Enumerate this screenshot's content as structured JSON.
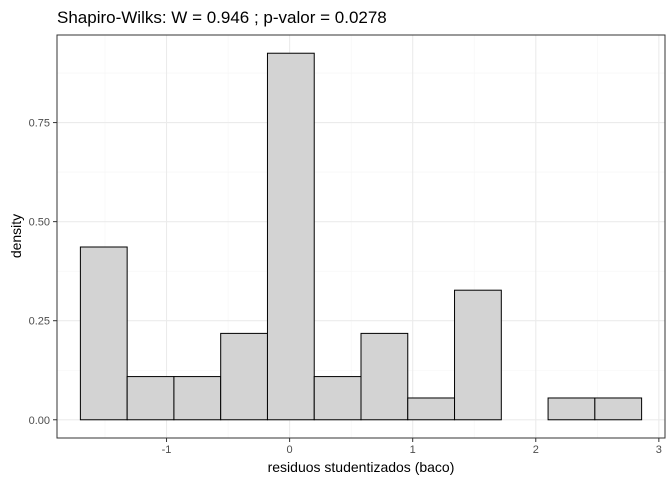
{
  "chart_data": {
    "type": "bar",
    "title": "Shapiro-Wilks: W =  0.946 ; p-valor =  0.0278",
    "xlabel": "residuos studentizados (baco)",
    "ylabel": "density",
    "bins": [
      {
        "x0": -1.7,
        "x1": -1.32,
        "density": 0.436
      },
      {
        "x0": -1.32,
        "x1": -0.94,
        "density": 0.109
      },
      {
        "x0": -0.94,
        "x1": -0.56,
        "density": 0.109
      },
      {
        "x0": -0.56,
        "x1": -0.18,
        "density": 0.218
      },
      {
        "x0": -0.18,
        "x1": 0.2,
        "density": 0.925
      },
      {
        "x0": 0.2,
        "x1": 0.58,
        "density": 0.109
      },
      {
        "x0": 0.58,
        "x1": 0.96,
        "density": 0.218
      },
      {
        "x0": 0.96,
        "x1": 1.34,
        "density": 0.055
      },
      {
        "x0": 1.34,
        "x1": 1.72,
        "density": 0.327
      },
      {
        "x0": 1.72,
        "x1": 2.1,
        "density": 0.0
      },
      {
        "x0": 2.1,
        "x1": 2.48,
        "density": 0.055
      },
      {
        "x0": 2.48,
        "x1": 2.86,
        "density": 0.055
      }
    ],
    "xlim": [
      -1.89,
      3.05
    ],
    "ylim": [
      -0.046,
      0.971
    ],
    "xticks": [
      -1,
      0,
      1,
      2,
      3
    ],
    "xtick_labels": [
      "-1",
      "0",
      "1",
      "2",
      "3"
    ],
    "yticks": [
      0.0,
      0.25,
      0.5,
      0.75
    ],
    "ytick_labels": [
      "0.00",
      "0.25",
      "0.50",
      "0.75"
    ],
    "grid": true,
    "bar_fill": "#d3d3d3",
    "bar_stroke": "#000000",
    "grid_major_color": "#ebebeb",
    "grid_minor_color": "#f5f5f5",
    "panel_border_color": "#333333"
  }
}
